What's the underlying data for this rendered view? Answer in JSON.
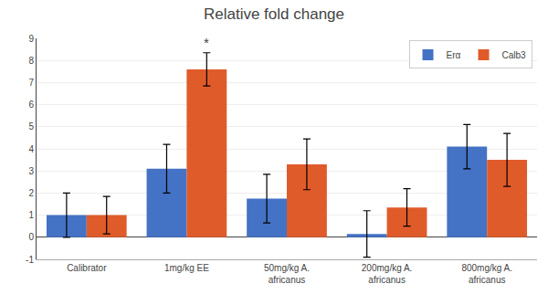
{
  "chart_data": {
    "type": "bar",
    "title": "Relative fold change",
    "categories": [
      "Calibrator",
      "1mg/kg EE",
      "50mg/kg A.\nafricanus",
      "200mg/kg A.\nafricanus",
      "800mg/kg A.\nafricanus"
    ],
    "series": [
      {
        "name": "Erα",
        "color": "#4472C4",
        "values": [
          1.0,
          3.1,
          1.75,
          0.15,
          4.1
        ],
        "errors": [
          1.0,
          1.1,
          1.1,
          1.05,
          1.0
        ]
      },
      {
        "name": "Calb3",
        "color": "#E05B2A",
        "values": [
          1.0,
          7.6,
          3.3,
          1.35,
          3.5
        ],
        "errors": [
          0.85,
          0.75,
          1.15,
          0.85,
          1.2
        ]
      }
    ],
    "ylim": [
      -1,
      9
    ],
    "yticks": [
      -1,
      0,
      1,
      2,
      3,
      4,
      5,
      6,
      7,
      8,
      9
    ],
    "grid": true,
    "legend": "upper right",
    "annotations": [
      {
        "text": "*",
        "category": "1mg/kg EE",
        "series": "Calb3"
      }
    ]
  }
}
